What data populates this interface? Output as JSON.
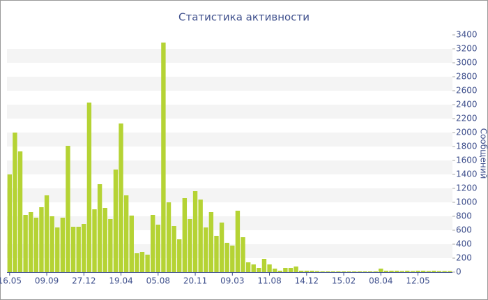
{
  "chart_data": {
    "type": "bar",
    "title": "Статистика активности",
    "y_label": "Сообщений",
    "categories": [
      "16.05",
      null,
      null,
      null,
      null,
      null,
      null,
      "09.09",
      null,
      null,
      null,
      null,
      null,
      null,
      "27.12",
      null,
      null,
      null,
      null,
      null,
      null,
      "19.04",
      null,
      null,
      null,
      null,
      null,
      null,
      "05.08",
      null,
      null,
      null,
      null,
      null,
      null,
      "20.11",
      null,
      null,
      null,
      null,
      null,
      null,
      "09.03",
      null,
      null,
      null,
      null,
      null,
      null,
      "11.08",
      null,
      null,
      null,
      null,
      null,
      null,
      "14.12",
      null,
      null,
      null,
      null,
      null,
      null,
      "15.02",
      null,
      null,
      null,
      null,
      null,
      null,
      "08.04",
      null,
      null,
      null,
      null,
      null,
      null,
      "12.05",
      null,
      null,
      null,
      null,
      null,
      null
    ],
    "values": [
      1400,
      2000,
      1730,
      820,
      860,
      780,
      930,
      1100,
      800,
      640,
      780,
      1810,
      650,
      650,
      690,
      2430,
      900,
      1260,
      920,
      760,
      1470,
      2130,
      1100,
      810,
      270,
      290,
      250,
      820,
      680,
      3290,
      1000,
      660,
      470,
      1060,
      760,
      1160,
      1040,
      640,
      860,
      520,
      710,
      420,
      380,
      880,
      500,
      140,
      110,
      60,
      190,
      110,
      50,
      20,
      60,
      60,
      80,
      20,
      20,
      20,
      15,
      10,
      10,
      10,
      10,
      10,
      10,
      10,
      10,
      10,
      10,
      10,
      50,
      20,
      20,
      20,
      15,
      20,
      15,
      20,
      20,
      15,
      20,
      15,
      15,
      15
    ],
    "color": "#b5d334",
    "ylim": [
      0,
      3400
    ],
    "yticks": [
      0,
      200,
      400,
      600,
      800,
      1000,
      1200,
      1400,
      1600,
      1800,
      2000,
      2200,
      2400,
      2600,
      2800,
      3000,
      3200,
      3400
    ],
    "grid": "bands",
    "y_axis_side": "right"
  }
}
